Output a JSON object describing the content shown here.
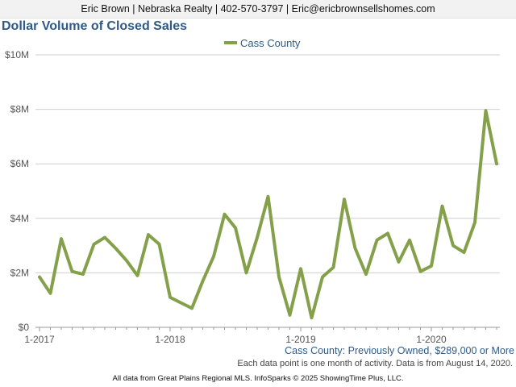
{
  "header": {
    "contact": "Eric Brown | Nebraska Realty | 402-570-3797 | Eric@ericbrownsellshomes.com"
  },
  "chart_data": {
    "type": "line",
    "title": "Dollar Volume of Closed Sales",
    "legend_position": "top-center",
    "grid": "horizontal",
    "series": [
      {
        "name": "Cass County",
        "color": "#85a04a",
        "x": [
          "2017-01",
          "2017-02",
          "2017-03",
          "2017-04",
          "2017-05",
          "2017-06",
          "2017-07",
          "2017-08",
          "2017-09",
          "2017-10",
          "2017-11",
          "2017-12",
          "2018-01",
          "2018-02",
          "2018-03",
          "2018-04",
          "2018-05",
          "2018-06",
          "2018-07",
          "2018-08",
          "2018-09",
          "2018-10",
          "2018-11",
          "2018-12",
          "2019-01",
          "2019-02",
          "2019-03",
          "2019-04",
          "2019-05",
          "2019-06",
          "2019-07",
          "2019-08",
          "2019-09",
          "2019-10",
          "2019-11",
          "2019-12",
          "2020-01",
          "2020-02",
          "2020-03",
          "2020-04",
          "2020-05",
          "2020-06",
          "2020-07"
        ],
        "values": [
          1.85,
          1.25,
          3.25,
          2.05,
          1.95,
          3.05,
          3.3,
          2.9,
          2.45,
          1.9,
          3.4,
          3.05,
          1.1,
          0.9,
          0.7,
          1.7,
          2.6,
          4.15,
          3.65,
          2.0,
          3.3,
          4.8,
          1.85,
          0.45,
          2.15,
          0.35,
          1.85,
          2.2,
          4.7,
          2.9,
          1.95,
          3.2,
          3.45,
          2.4,
          3.2,
          2.05,
          2.25,
          4.45,
          3.0,
          2.75,
          3.85,
          7.95,
          6.0
        ]
      }
    ],
    "y_axis": {
      "range": [
        0,
        10
      ],
      "ticks": [
        0,
        2,
        4,
        6,
        8,
        10
      ],
      "tick_labels": [
        "$0",
        "$2M",
        "$4M",
        "$6M",
        "$8M",
        "$10M"
      ]
    },
    "x_axis": {
      "range": [
        "2017-01",
        "2020-07"
      ],
      "tick_labels": [
        {
          "value": "2017-01",
          "label": "1-2017"
        },
        {
          "value": "2018-01",
          "label": "1-2018"
        },
        {
          "value": "2019-01",
          "label": "1-2019"
        },
        {
          "value": "2020-01",
          "label": "1-2020"
        }
      ]
    },
    "subtitle": "Cass County: Previously Owned, $289,000 or More"
  },
  "footer": {
    "note": "Each data point is one month of activity. Data is from August 14, 2020.",
    "credits": "All data from Great Plains Regional MLS. InfoSparks © 2025 ShowingTime Plus, LLC."
  }
}
